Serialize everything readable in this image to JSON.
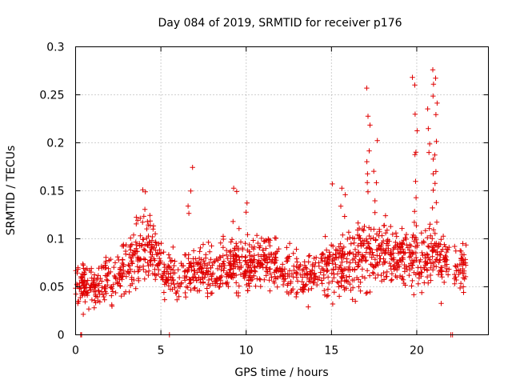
{
  "chart_data": {
    "type": "scatter",
    "title": "Day 084 of 2019, SRMTID for receiver p176",
    "xlabel": "GPS time / hours",
    "ylabel": "SRMTID / TECUs",
    "xlim": [
      0,
      24.2
    ],
    "ylim": [
      0,
      0.3
    ],
    "x_ticks": [
      0,
      5,
      10,
      15,
      20
    ],
    "x_tick_labels": [
      "0",
      "5",
      "10",
      "15",
      "20"
    ],
    "y_ticks": [
      0,
      0.05,
      0.1,
      0.15,
      0.2,
      0.25,
      0.3
    ],
    "y_tick_labels": [
      "0",
      "0.05",
      "0.1",
      "0.15",
      "0.2",
      "0.25",
      "0.3"
    ],
    "grid": true,
    "marker": "+",
    "color": "#e00000",
    "series": [
      {
        "name": "SRMTID",
        "profile": [
          {
            "x": 0.0,
            "mean": 0.055,
            "spread": 0.022
          },
          {
            "x": 1.0,
            "mean": 0.05,
            "spread": 0.02
          },
          {
            "x": 2.0,
            "mean": 0.058,
            "spread": 0.022
          },
          {
            "x": 3.0,
            "mean": 0.07,
            "spread": 0.025
          },
          {
            "x": 3.8,
            "mean": 0.085,
            "spread": 0.03
          },
          {
            "x": 4.4,
            "mean": 0.09,
            "spread": 0.03
          },
          {
            "x": 5.2,
            "mean": 0.065,
            "spread": 0.022
          },
          {
            "x": 6.0,
            "mean": 0.06,
            "spread": 0.022
          },
          {
            "x": 7.0,
            "mean": 0.07,
            "spread": 0.025
          },
          {
            "x": 8.0,
            "mean": 0.068,
            "spread": 0.022
          },
          {
            "x": 9.0,
            "mean": 0.072,
            "spread": 0.025
          },
          {
            "x": 10.0,
            "mean": 0.075,
            "spread": 0.025
          },
          {
            "x": 11.0,
            "mean": 0.078,
            "spread": 0.025
          },
          {
            "x": 12.0,
            "mean": 0.072,
            "spread": 0.024
          },
          {
            "x": 13.0,
            "mean": 0.06,
            "spread": 0.022
          },
          {
            "x": 14.0,
            "mean": 0.062,
            "spread": 0.022
          },
          {
            "x": 15.0,
            "mean": 0.075,
            "spread": 0.028
          },
          {
            "x": 16.0,
            "mean": 0.07,
            "spread": 0.028
          },
          {
            "x": 17.0,
            "mean": 0.085,
            "spread": 0.035
          },
          {
            "x": 18.0,
            "mean": 0.09,
            "spread": 0.03
          },
          {
            "x": 19.0,
            "mean": 0.078,
            "spread": 0.025
          },
          {
            "x": 20.0,
            "mean": 0.085,
            "spread": 0.03
          },
          {
            "x": 21.0,
            "mean": 0.08,
            "spread": 0.03
          },
          {
            "x": 21.6,
            "mean": 0.075,
            "spread": 0.025
          },
          {
            "x": 22.3,
            "mean": 0.07,
            "spread": 0.02
          },
          {
            "x": 22.9,
            "mean": 0.07,
            "spread": 0.02
          }
        ],
        "gaps": [
          [
            21.9,
            22.2
          ]
        ],
        "spikes": [
          {
            "x": 3.6,
            "values": [
              0.12,
              0.115,
              0.125
            ]
          },
          {
            "x": 4.1,
            "values": [
              0.15,
              0.148,
              0.13,
              0.12
            ]
          },
          {
            "x": 6.7,
            "values": [
              0.175,
              0.147,
              0.135,
              0.128
            ]
          },
          {
            "x": 9.3,
            "values": [
              0.155,
              0.15,
              0.12
            ]
          },
          {
            "x": 10.1,
            "values": [
              0.138,
              0.13
            ]
          },
          {
            "x": 14.9,
            "values": [
              0.156
            ]
          },
          {
            "x": 15.7,
            "values": [
              0.15,
              0.145,
              0.135,
              0.125
            ]
          },
          {
            "x": 17.2,
            "values": [
              0.258,
              0.23,
              0.22,
              0.19,
              0.18,
              0.17,
              0.16,
              0.15
            ]
          },
          {
            "x": 17.6,
            "values": [
              0.2,
              0.17,
              0.16,
              0.14,
              0.13
            ]
          },
          {
            "x": 19.9,
            "values": [
              0.27,
              0.26,
              0.23,
              0.215,
              0.19,
              0.185,
              0.16,
              0.14,
              0.13
            ]
          },
          {
            "x": 20.8,
            "values": [
              0.233,
              0.215,
              0.2,
              0.19,
              0.18,
              0.17,
              0.15
            ]
          },
          {
            "x": 21.05,
            "values": [
              0.279,
              0.265,
              0.26,
              0.25,
              0.24,
              0.23,
              0.2,
              0.185,
              0.17,
              0.155,
              0.14,
              0.13,
              0.12
            ]
          }
        ],
        "zero_points": [
          0.3,
          0.35,
          5.5,
          22.0,
          22.1
        ]
      }
    ]
  }
}
